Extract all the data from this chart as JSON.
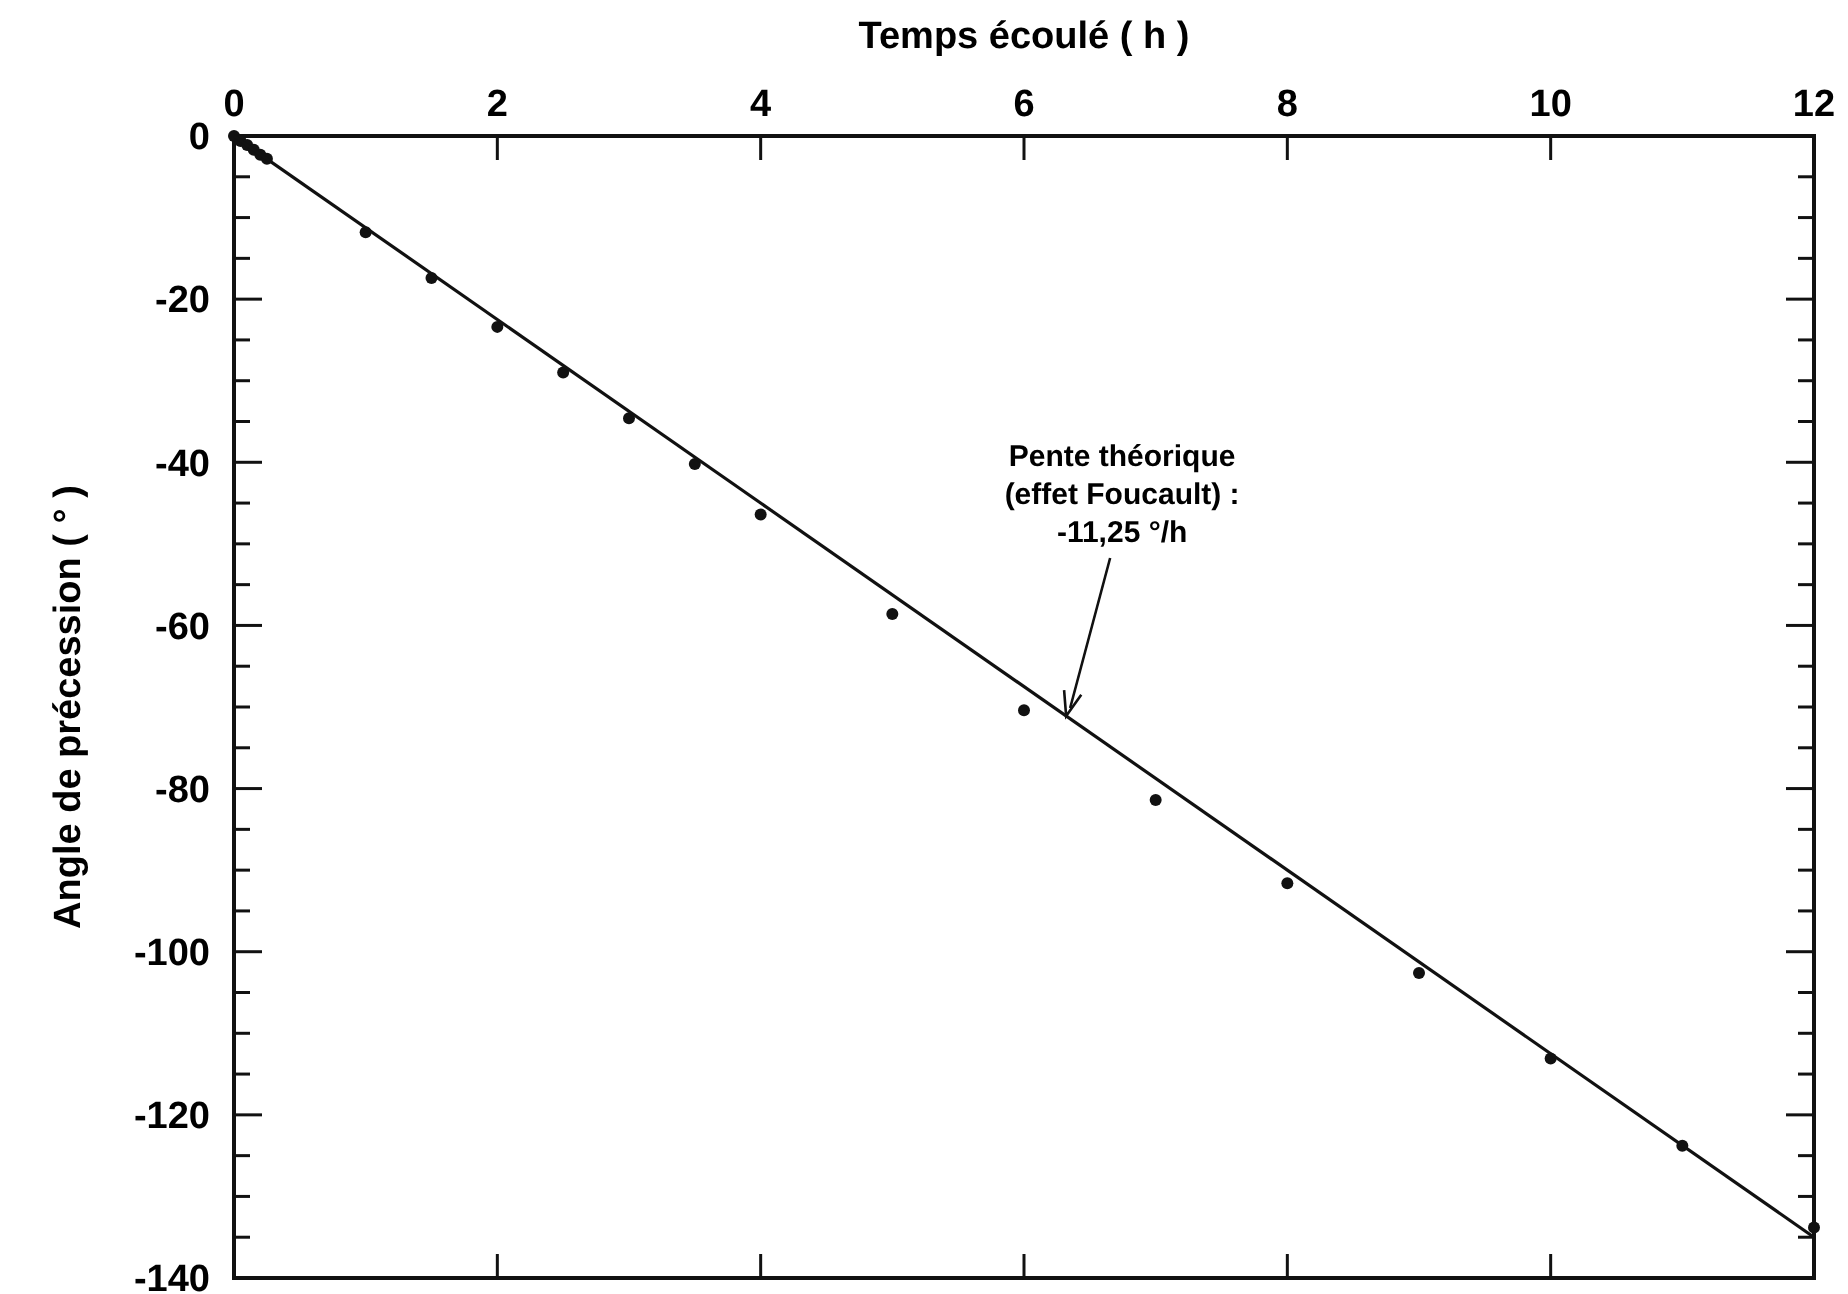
{
  "chart_data": {
    "type": "scatter",
    "xlabel": "Temps écoulé  ( h )",
    "ylabel": "Angle de précession  ( ° )",
    "xlim": [
      0,
      12
    ],
    "xticks": [
      0,
      2,
      4,
      6,
      8,
      10,
      12
    ],
    "ylim": [
      -140,
      0
    ],
    "yticks": [
      {
        "value": -140,
        "label": "-140"
      },
      {
        "value": -135,
        "label": null
      },
      {
        "value": -130,
        "label": null
      },
      {
        "value": -125,
        "label": null
      },
      {
        "value": -120,
        "label": "-120"
      },
      {
        "value": -115,
        "label": null
      },
      {
        "value": -110,
        "label": null
      },
      {
        "value": -105,
        "label": null
      },
      {
        "value": -100,
        "label": "-100"
      },
      {
        "value": -95,
        "label": null
      },
      {
        "value": -90,
        "label": null
      },
      {
        "value": -85,
        "label": null
      },
      {
        "value": -80,
        "label": "-80"
      },
      {
        "value": -75,
        "label": null
      },
      {
        "value": -70,
        "label": null
      },
      {
        "value": -65,
        "label": null
      },
      {
        "value": -60,
        "label": "-60"
      },
      {
        "value": -55,
        "label": null
      },
      {
        "value": -50,
        "label": null
      },
      {
        "value": -45,
        "label": null
      },
      {
        "value": -40,
        "label": "-40"
      },
      {
        "value": -35,
        "label": null
      },
      {
        "value": -30,
        "label": null
      },
      {
        "value": -25,
        "label": null
      },
      {
        "value": -20,
        "label": "-20"
      },
      {
        "value": -15,
        "label": null
      },
      {
        "value": -10,
        "label": null
      },
      {
        "value": -5,
        "label": null
      },
      {
        "value": 0,
        "label": "0"
      }
    ],
    "grid": false,
    "marker": "circle",
    "series": [
      {
        "color": "#111111",
        "x": [
          0,
          0.05,
          0.1,
          0.15,
          0.2,
          0.25,
          1.0,
          1.5,
          2.0,
          2.5,
          3.0,
          3.5,
          4.0,
          5.0,
          6.0,
          7.0,
          8.0,
          9.0,
          10.0,
          11.0,
          12.0
        ],
        "values": [
          0,
          -0.6,
          -1.1,
          -1.7,
          -2.3,
          -2.8,
          -11.8,
          -17.4,
          -23.4,
          -29.0,
          -34.6,
          -40.2,
          -46.4,
          -58.6,
          -70.4,
          -81.4,
          -91.6,
          -102.6,
          -113.1,
          -123.8,
          -133.8
        ]
      },
      {
        "type": "line",
        "color": "#111111",
        "x": [
          0,
          12
        ],
        "values": [
          0,
          -135
        ],
        "marker": "none",
        "line_style": "solid"
      }
    ],
    "annotations": [
      {
        "text": "Pente théorique\n(effet Foucault) :\n-11,25 °/h",
        "x": 6.32,
        "y": -71.1
      }
    ]
  }
}
